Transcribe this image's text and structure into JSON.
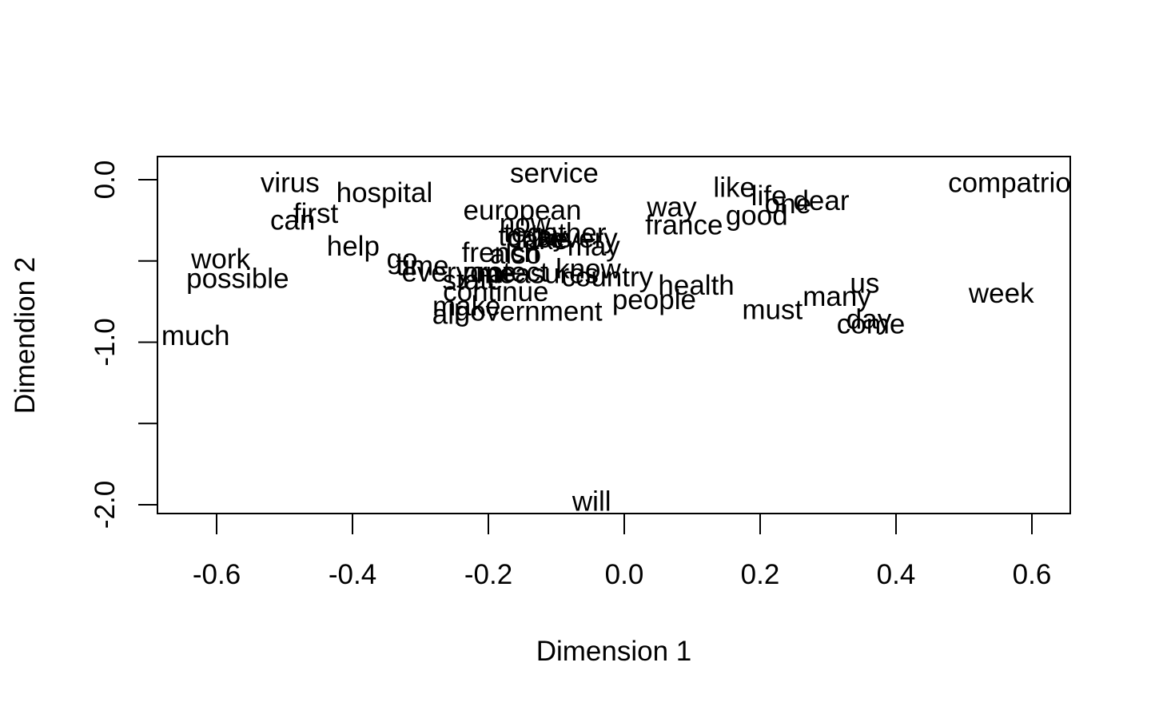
{
  "chart_data": {
    "type": "scatter",
    "title": "",
    "xlabel": "Dimension 1",
    "ylabel": "Dimendion 2",
    "xlim": [
      -0.68,
      0.66
    ],
    "ylim": [
      -2.06,
      0.14
    ],
    "x_ticks": [
      -0.6,
      -0.4,
      -0.2,
      0.0,
      0.2,
      0.4,
      0.6
    ],
    "x_tick_labels": [
      "-0.6",
      "-0.4",
      "-0.2",
      "0.0",
      "0.2",
      "0.4",
      "0.6"
    ],
    "y_ticks": [
      0.0,
      -0.5,
      -1.0,
      -1.5,
      -2.0
    ],
    "y_tick_labels": [
      "0.0",
      "",
      "-1.0",
      "",
      "-2.0"
    ],
    "grid": false,
    "legend": "none",
    "points": [
      {
        "label": "service",
        "x": -0.103,
        "y": 0.04
      },
      {
        "label": "virus",
        "x": -0.492,
        "y": -0.02
      },
      {
        "label": "hospital",
        "x": -0.353,
        "y": -0.08
      },
      {
        "label": "compatriots",
        "x": 0.583,
        "y": -0.02
      },
      {
        "label": "like",
        "x": 0.162,
        "y": -0.05
      },
      {
        "label": "life",
        "x": 0.213,
        "y": -0.1
      },
      {
        "label": "one",
        "x": 0.241,
        "y": -0.15
      },
      {
        "label": "dear",
        "x": 0.29,
        "y": -0.13
      },
      {
        "label": "european",
        "x": -0.15,
        "y": -0.19
      },
      {
        "label": "way",
        "x": 0.07,
        "y": -0.17
      },
      {
        "label": "first",
        "x": -0.454,
        "y": -0.21
      },
      {
        "label": "can",
        "x": -0.488,
        "y": -0.25
      },
      {
        "label": "good",
        "x": 0.195,
        "y": -0.22
      },
      {
        "label": "france",
        "x": 0.088,
        "y": -0.28
      },
      {
        "label": "now",
        "x": -0.146,
        "y": -0.27
      },
      {
        "label": "together",
        "x": -0.102,
        "y": -0.33
      },
      {
        "label": "today",
        "x": -0.135,
        "y": -0.35
      },
      {
        "label": "crisis",
        "x": -0.125,
        "y": -0.36
      },
      {
        "label": "take",
        "x": -0.121,
        "y": -0.37
      },
      {
        "label": "every",
        "x": -0.06,
        "y": -0.36
      },
      {
        "label": "help",
        "x": -0.399,
        "y": -0.41
      },
      {
        "label": "may",
        "x": -0.045,
        "y": -0.41
      },
      {
        "label": "french",
        "x": -0.182,
        "y": -0.45
      },
      {
        "label": "also",
        "x": -0.16,
        "y": -0.46
      },
      {
        "label": "work",
        "x": -0.594,
        "y": -0.49
      },
      {
        "label": "go",
        "x": -0.327,
        "y": -0.49
      },
      {
        "label": "time",
        "x": -0.297,
        "y": -0.53
      },
      {
        "label": "everyone",
        "x": -0.243,
        "y": -0.57
      },
      {
        "label": "protect",
        "x": -0.175,
        "y": -0.57
      },
      {
        "label": "measures",
        "x": -0.128,
        "y": -0.58
      },
      {
        "label": "know",
        "x": -0.053,
        "y": -0.55
      },
      {
        "label": "country",
        "x": -0.025,
        "y": -0.6
      },
      {
        "label": "possible",
        "x": -0.569,
        "y": -0.61
      },
      {
        "label": "health",
        "x": 0.106,
        "y": -0.65
      },
      {
        "label": "state",
        "x": -0.223,
        "y": -0.62
      },
      {
        "label": "continue",
        "x": -0.189,
        "y": -0.69
      },
      {
        "label": "people",
        "x": 0.044,
        "y": -0.74
      },
      {
        "label": "us",
        "x": 0.354,
        "y": -0.64
      },
      {
        "label": "many",
        "x": 0.313,
        "y": -0.72
      },
      {
        "label": "week",
        "x": 0.555,
        "y": -0.7
      },
      {
        "label": "must",
        "x": 0.218,
        "y": -0.8
      },
      {
        "label": "make",
        "x": -0.232,
        "y": -0.78
      },
      {
        "label": "government",
        "x": -0.141,
        "y": -0.81
      },
      {
        "label": "all",
        "x": -0.262,
        "y": -0.83
      },
      {
        "label": "day",
        "x": 0.36,
        "y": -0.86
      },
      {
        "label": "come",
        "x": 0.363,
        "y": -0.89
      },
      {
        "label": "much",
        "x": -0.631,
        "y": -0.96
      },
      {
        "label": "will",
        "x": -0.048,
        "y": -1.98
      }
    ]
  }
}
